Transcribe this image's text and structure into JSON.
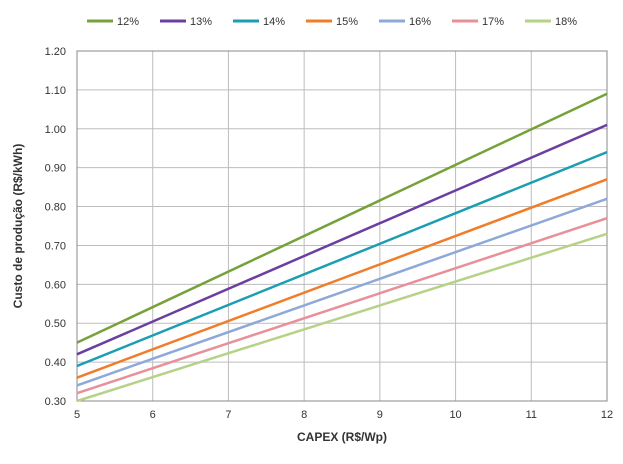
{
  "chart_data": {
    "type": "line",
    "title": "",
    "xlabel": "CAPEX (R$/Wp)",
    "ylabel": "Custo de produção (R$/kWh)",
    "xlim": [
      5,
      12
    ],
    "ylim": [
      0.3,
      1.2
    ],
    "x_ticks": [
      "5",
      "6",
      "7",
      "8",
      "9",
      "10",
      "11",
      "12"
    ],
    "y_ticks": [
      "0.30",
      "0.40",
      "0.50",
      "0.60",
      "0.70",
      "0.80",
      "0.90",
      "1.00",
      "1.10",
      "1.20"
    ],
    "grid": true,
    "legend_position": "top",
    "series": [
      {
        "name": "12%",
        "color": "#77a13a",
        "x": [
          5,
          12
        ],
        "values": [
          0.45,
          1.09
        ]
      },
      {
        "name": "13%",
        "color": "#6b3fa0",
        "x": [
          5,
          12
        ],
        "values": [
          0.42,
          1.01
        ]
      },
      {
        "name": "14%",
        "color": "#1b9db3",
        "x": [
          5,
          12
        ],
        "values": [
          0.39,
          0.94
        ]
      },
      {
        "name": "15%",
        "color": "#ef7d2a",
        "x": [
          5,
          12
        ],
        "values": [
          0.36,
          0.87
        ]
      },
      {
        "name": "16%",
        "color": "#8ea9d9",
        "x": [
          5,
          12
        ],
        "values": [
          0.34,
          0.82
        ]
      },
      {
        "name": "17%",
        "color": "#e8909a",
        "x": [
          5,
          12
        ],
        "values": [
          0.32,
          0.77
        ]
      },
      {
        "name": "18%",
        "color": "#b6d286",
        "x": [
          5,
          12
        ],
        "values": [
          0.3,
          0.73
        ]
      }
    ]
  }
}
